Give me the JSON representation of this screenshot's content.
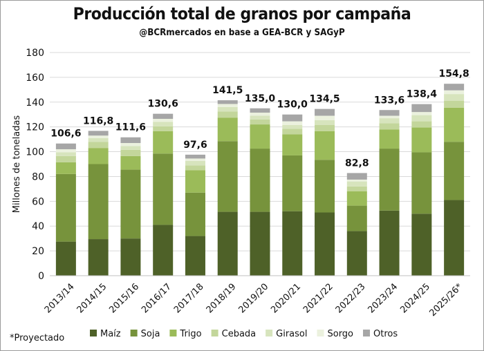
{
  "chart_data": {
    "type": "bar",
    "stacked": true,
    "title": "Producción total de granos por campaña",
    "subtitle": "@BCRmercados  en base a GEA-BCR y SAGyP",
    "xlabel": "",
    "ylabel": "Millones de toneladas",
    "ylim": [
      0,
      180
    ],
    "yticks": [
      0,
      20,
      40,
      60,
      80,
      100,
      120,
      140,
      160,
      180
    ],
    "grid": true,
    "legend_position": "bottom",
    "note": "*Proyectado",
    "categories": [
      "2013/14",
      "2014/15",
      "2015/16",
      "2016/17",
      "2017/18",
      "2018/19",
      "2019/20",
      "2020/21",
      "2021/22",
      "2022/23",
      "2023/24",
      "2024/25",
      "2025/26*"
    ],
    "totals": [
      "106,6",
      "116,8",
      "111,6",
      "130,6",
      "97,6",
      "141,5",
      "135,0",
      "130,0",
      "134,5",
      "82,8",
      "133,6",
      "138,4",
      "154,8"
    ],
    "series": [
      {
        "name": "Maíz",
        "color": "#4e6128",
        "values": [
          27.5,
          29.5,
          30.0,
          41.0,
          32.0,
          51.5,
          51.5,
          52.0,
          51.0,
          36.0,
          52.5,
          50.0,
          61.0
        ]
      },
      {
        "name": "Soja",
        "color": "#77933c",
        "values": [
          54.5,
          60.5,
          55.5,
          57.5,
          35.0,
          57.0,
          51.0,
          45.0,
          42.5,
          20.5,
          50.0,
          49.5,
          47.0
        ]
      },
      {
        "name": "Trigo",
        "color": "#9bbb59",
        "values": [
          9.5,
          13.0,
          11.0,
          18.0,
          18.0,
          19.0,
          19.5,
          17.0,
          23.0,
          11.5,
          15.5,
          20.0,
          27.5
        ]
      },
      {
        "name": "Cebada",
        "color": "#c3d69b",
        "values": [
          5.0,
          5.0,
          5.0,
          4.0,
          4.0,
          5.0,
          4.0,
          4.5,
          5.0,
          4.0,
          5.0,
          5.0,
          5.5
        ]
      },
      {
        "name": "Girasol",
        "color": "#d7e4bd",
        "values": [
          3.0,
          3.0,
          3.0,
          3.5,
          3.5,
          3.5,
          3.0,
          3.0,
          4.0,
          4.0,
          4.0,
          5.0,
          5.5
        ]
      },
      {
        "name": "Sorgo",
        "color": "#ebf1de",
        "values": [
          2.5,
          2.0,
          2.5,
          2.5,
          2.0,
          2.5,
          2.5,
          3.0,
          3.5,
          1.5,
          2.0,
          2.5,
          3.0
        ]
      },
      {
        "name": "Otros",
        "color": "#a6a6a6",
        "values": [
          4.6,
          3.8,
          4.6,
          4.1,
          3.1,
          3.0,
          3.5,
          5.5,
          5.5,
          5.3,
          4.6,
          6.4,
          5.3
        ]
      }
    ]
  }
}
